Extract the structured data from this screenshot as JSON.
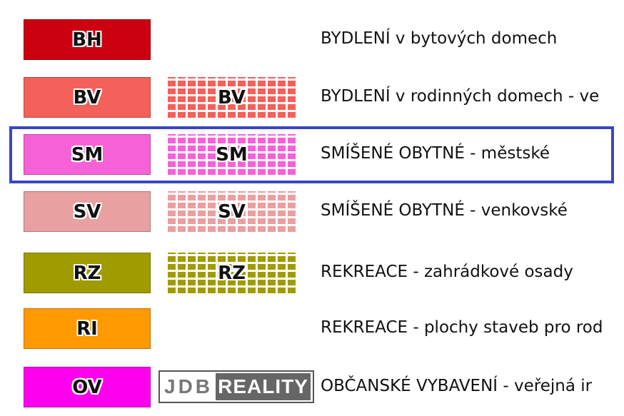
{
  "rows": [
    {
      "code": "BH",
      "color": "#cc0011",
      "pattern": false,
      "desc": "BYDLENÍ v bytových domech"
    },
    {
      "code": "BV",
      "color": "#f4605a",
      "pattern": true,
      "desc": "BYDLENÍ v rodinných domech - ve"
    },
    {
      "code": "SM",
      "color": "#f562d8",
      "pattern": true,
      "desc": "SMÍŠENÉ OBYTNÉ - městské"
    },
    {
      "code": "SV",
      "color": "#e8a0a0",
      "pattern": true,
      "desc": "SMÍŠENÉ OBYTNÉ - venkovské"
    },
    {
      "code": "RZ",
      "color": "#a09c00",
      "pattern": true,
      "desc": "REKREACE - zahrádkové osady"
    },
    {
      "code": "RI",
      "color": "#ff9900",
      "pattern": false,
      "desc": "REKREACE - plochy staveb pro rod"
    },
    {
      "code": "OV",
      "color": "#ff00ee",
      "pattern": false,
      "desc": "OBČANSKÉ VYBAVENÍ - veřejná ir"
    }
  ],
  "highlight_color": "#3a46c0",
  "watermark": {
    "left": "JDB",
    "right": "REALITY"
  }
}
